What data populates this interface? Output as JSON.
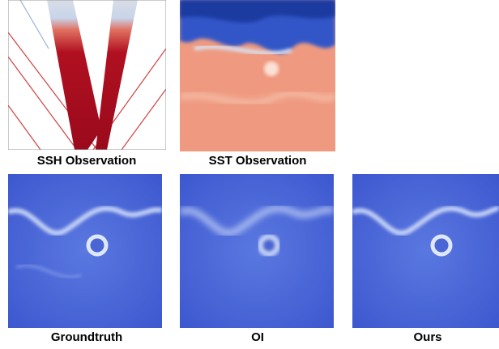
{
  "figure": {
    "panels": [
      {
        "caption": "SSH Observation"
      },
      {
        "caption": "SST Observation"
      },
      {
        "caption": "Groundtruth"
      },
      {
        "caption": "OI"
      },
      {
        "caption": "Ours"
      }
    ]
  }
}
